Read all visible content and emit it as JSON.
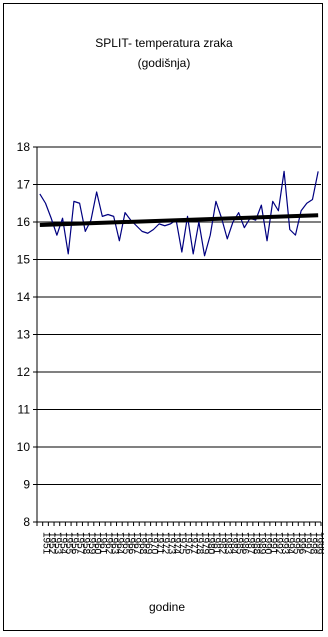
{
  "chart_data": {
    "type": "line",
    "title_line1": "SPLIT- temperatura zraka",
    "title_line2": "(godišnja)",
    "xlabel": "godine",
    "ylabel": "",
    "ylim": [
      8,
      18
    ],
    "yticks": [
      8,
      9,
      10,
      11,
      12,
      13,
      14,
      15,
      16,
      17,
      18
    ],
    "x": [
      1951,
      1952,
      1953,
      1954,
      1955,
      1956,
      1957,
      1958,
      1959,
      1960,
      1961,
      1962,
      1963,
      1964,
      1965,
      1966,
      1967,
      1968,
      1969,
      1970,
      1971,
      1972,
      1973,
      1974,
      1975,
      1976,
      1977,
      1978,
      1979,
      1980,
      1981,
      1982,
      1983,
      1984,
      1985,
      1986,
      1987,
      1988,
      1989,
      1990,
      1991,
      1992,
      1993,
      1994,
      1995,
      1996,
      1997,
      1998,
      1999,
      2000
    ],
    "series": [
      {
        "color": "#000080",
        "values": [
          16.75,
          16.5,
          16.1,
          15.65,
          16.1,
          15.15,
          16.55,
          16.5,
          15.75,
          16.05,
          16.8,
          16.15,
          16.2,
          16.15,
          15.5,
          16.25,
          16.05,
          15.9,
          15.75,
          15.7,
          15.8,
          15.95,
          15.9,
          15.95,
          16.05,
          15.2,
          16.15,
          15.15,
          16.0,
          15.1,
          15.65,
          16.55,
          16.1,
          15.55,
          16.0,
          16.25,
          15.85,
          16.1,
          16.05,
          16.45,
          15.5,
          16.55,
          16.3,
          17.35,
          15.8,
          15.65,
          16.3,
          16.5,
          16.6,
          17.35
        ]
      }
    ],
    "trend": {
      "color": "#000000",
      "start": 15.92,
      "end": 16.18
    },
    "grid": true,
    "legend": "none"
  }
}
